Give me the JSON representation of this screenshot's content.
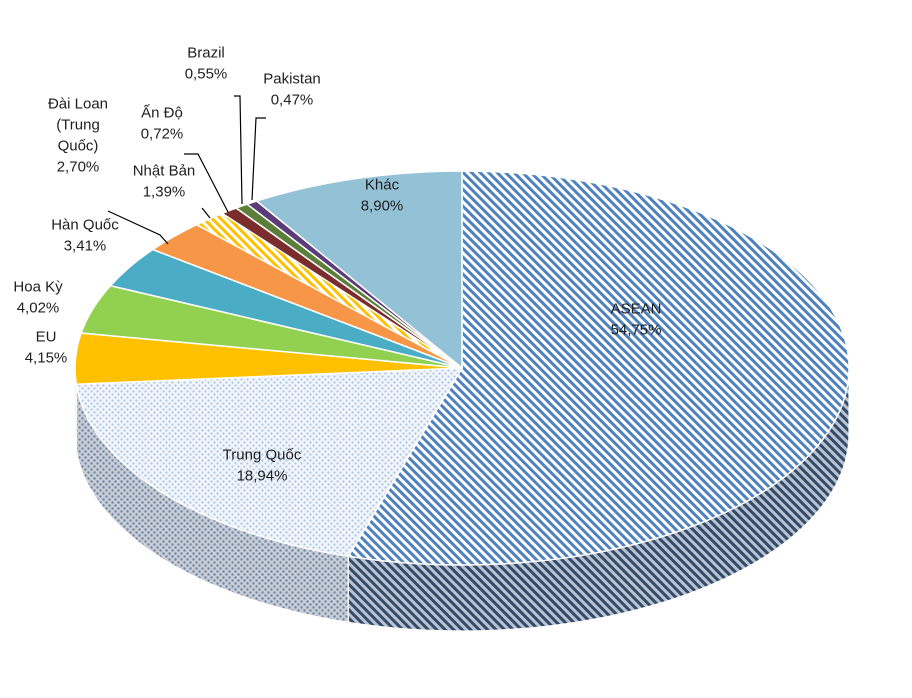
{
  "chart_data": {
    "type": "pie",
    "style": "3d-exploded-slice",
    "title": "",
    "slices": [
      {
        "name": "ASEAN",
        "value": 54.75,
        "label": "54,75%",
        "color": "#4f81bd",
        "pattern": "diagonal-stripes"
      },
      {
        "name": "Trung Quốc",
        "value": 18.94,
        "label": "18,94%",
        "color": "#9dc3e6",
        "pattern": "dotted"
      },
      {
        "name": "EU",
        "value": 4.15,
        "label": "4,15%",
        "color": "#ffc000",
        "pattern": "solid"
      },
      {
        "name": "Hoa Kỳ",
        "value": 4.02,
        "label": "4,02%",
        "color": "#92d050",
        "pattern": "solid"
      },
      {
        "name": "Hàn Quốc",
        "value": 3.41,
        "label": "3,41%",
        "color": "#4bacc6",
        "pattern": "solid"
      },
      {
        "name": "Đài Loan (Trung Quốc)",
        "value": 2.7,
        "label": "2,70%",
        "color": "#f79646",
        "pattern": "solid"
      },
      {
        "name": "Nhật Bản",
        "value": 1.39,
        "label": "1,39%",
        "color": "#ffc000",
        "pattern": "diagonal-stripes"
      },
      {
        "name": "Ấn Độ",
        "value": 0.72,
        "label": "0,72%",
        "color": "#7b2c2c",
        "pattern": "solid"
      },
      {
        "name": "Brazil",
        "value": 0.55,
        "label": "0,55%",
        "color": "#5b7f3a",
        "pattern": "solid"
      },
      {
        "name": "Pakistan",
        "value": 0.47,
        "label": "0,47%",
        "color": "#5b3c78",
        "pattern": "solid"
      },
      {
        "name": "Khác",
        "value": 8.9,
        "label": "8,90%",
        "color": "#93c2d6",
        "pattern": "solid"
      }
    ]
  }
}
